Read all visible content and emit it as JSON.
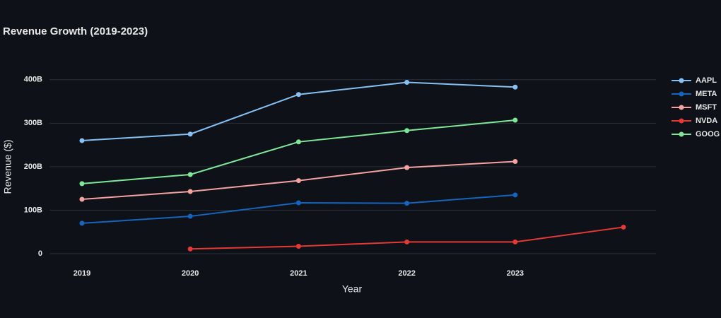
{
  "chart_data": {
    "type": "line",
    "title": "Revenue Growth (2019-2023)",
    "x_label": "Year",
    "y_label": "Revenue ($)",
    "xlim": [
      2018.7,
      2024.3
    ],
    "xticks": [
      2019,
      2020,
      2021,
      2022,
      2023
    ],
    "ylim": [
      -39,
      437
    ],
    "yticks": [
      0,
      {
        "value": 100,
        "label": "100B"
      },
      {
        "value": 200,
        "label": "200B"
      },
      {
        "value": 300,
        "label": "300B"
      },
      {
        "value": 400,
        "label": "400B"
      }
    ],
    "grid": true,
    "legend": "right",
    "series": [
      {
        "name": "AAPL",
        "color": "#85c1f5",
        "x": [
          2019,
          2020,
          2021,
          2022,
          2023
        ],
        "values": [
          260,
          275,
          366,
          394,
          383
        ]
      },
      {
        "name": "META",
        "color": "#1565c0",
        "x": [
          2019,
          2020,
          2021,
          2022,
          2023
        ],
        "values": [
          70,
          86,
          117,
          116,
          135
        ]
      },
      {
        "name": "MSFT",
        "color": "#f4a3a0",
        "x": [
          2019,
          2020,
          2021,
          2022,
          2023
        ],
        "values": [
          125,
          143,
          168,
          198,
          212
        ]
      },
      {
        "name": "NVDA",
        "color": "#e53935",
        "x": [
          2020,
          2021,
          2022,
          2023,
          2024
        ],
        "values": [
          11,
          17,
          27,
          27,
          61
        ]
      },
      {
        "name": "GOOG",
        "color": "#7ee89a",
        "x": [
          2019,
          2020,
          2021,
          2022,
          2023
        ],
        "values": [
          161,
          182,
          257,
          283,
          307
        ]
      }
    ]
  }
}
